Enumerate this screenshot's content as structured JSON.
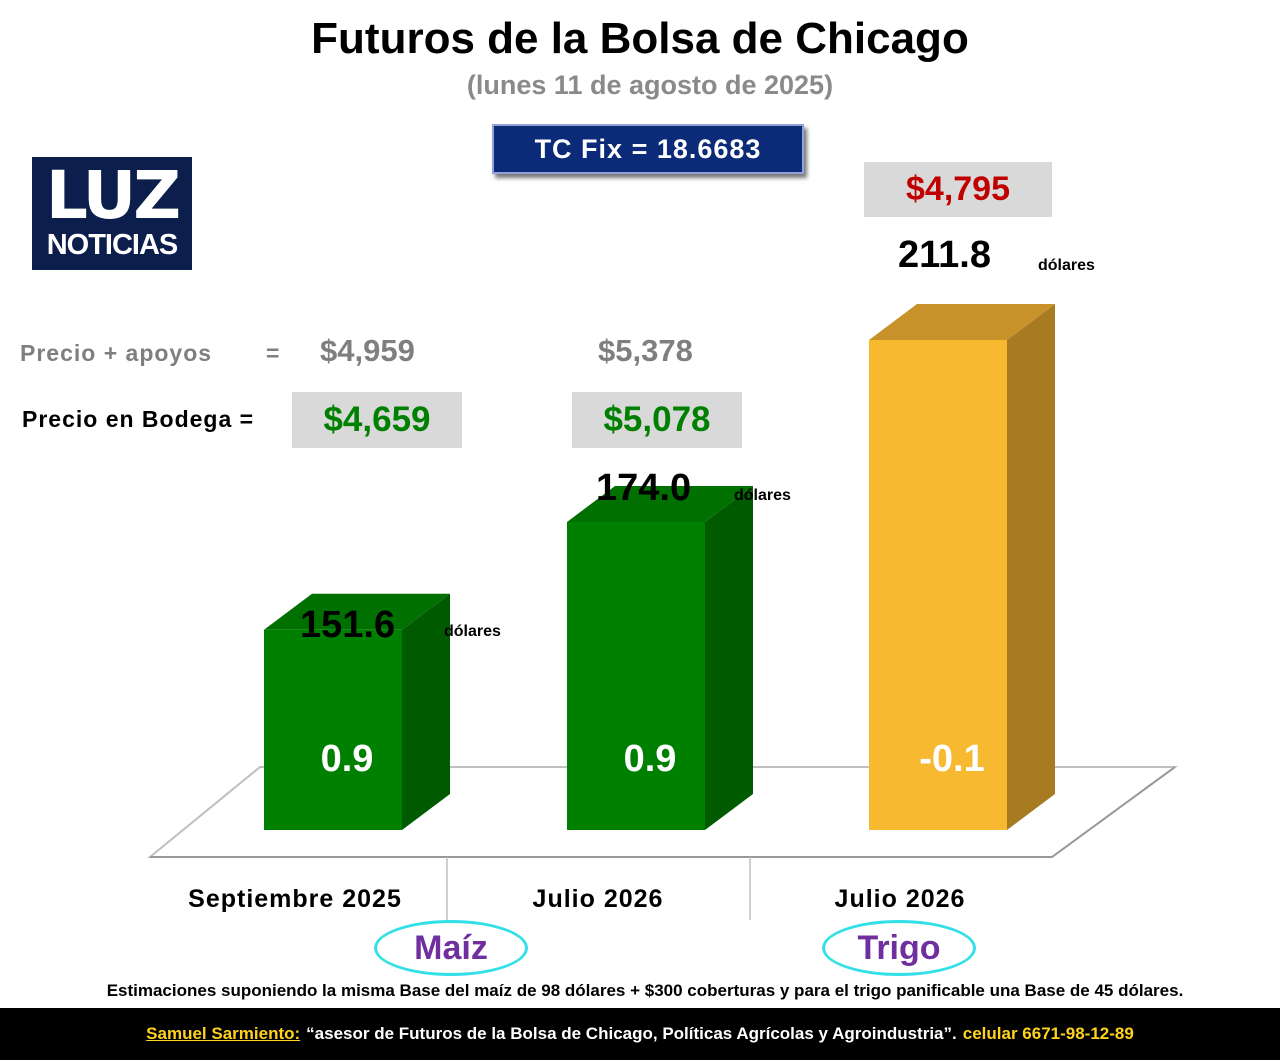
{
  "header": {
    "title": "Futuros de la Bolsa de Chicago",
    "subtitle": "(lunes 11 de agosto de 2025)",
    "tc_fix": "TC Fix = 18.6683"
  },
  "logo": {
    "line1": "LUZ",
    "line2": "NOTICIAS"
  },
  "price_table": {
    "apoyos_label": "Precio + apoyos",
    "apoyos_eq": "=",
    "apoyos_values": [
      "$4,959",
      "$5,378"
    ],
    "bodega_label": "Precio en Bodega =",
    "bodega_values": [
      "$4,659",
      "$5,078"
    ],
    "trigo_price": "$4,795"
  },
  "chart_data": {
    "type": "bar",
    "categories": [
      "Septiembre 2025",
      "Julio 2026",
      "Julio 2026"
    ],
    "values": [
      151.6,
      174.0,
      211.8
    ],
    "value_labels": [
      "151.6",
      "174.0",
      "211.8"
    ],
    "unit": "dólares",
    "change_labels": [
      "0.9",
      "0.9",
      "-0.1"
    ],
    "bar_colors": [
      "#008000",
      "#008000",
      "#f6b930"
    ],
    "groups": [
      "Maíz",
      "Trigo"
    ]
  },
  "note": "Estimaciones suponiendo la misma Base del maíz de 98 dólares + $300 coberturas y para el trigo panificable una Base de 45 dólares.",
  "footer": {
    "name": "Samuel Sarmiento:",
    "quote": "“asesor de Futuros de la Bolsa de Chicago, Políticas Agrícolas y Agroindustria”.",
    "contact": "celular 6671-98-12-89"
  }
}
